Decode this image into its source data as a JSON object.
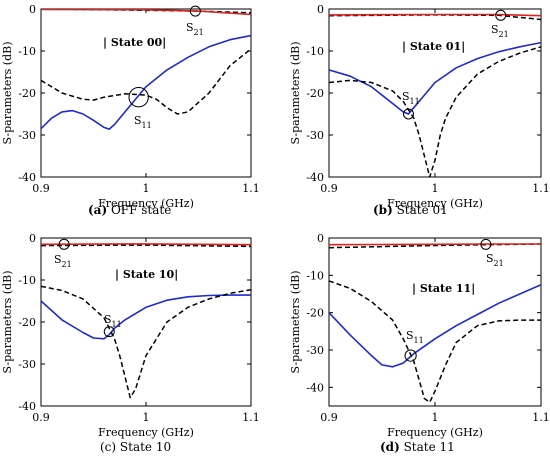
{
  "chart_data": [
    {
      "type": "line",
      "caption_letter": "(a)",
      "caption_text": "OFF state",
      "caption_letter_bold": true,
      "state_label": "| State 00|",
      "xlabel": "Frequency (GHz)",
      "ylabel": "S-parameters (dB)",
      "xlim": [
        0.9,
        1.1
      ],
      "ylim": [
        -40,
        0
      ],
      "xticks": [
        "0.9",
        "1",
        "1.1"
      ],
      "yticks": [
        "0",
        "-10",
        "-20",
        "-30",
        "-40"
      ],
      "annotations": [
        {
          "label": "S",
          "sub": "21",
          "x": 1.047,
          "y": -0.5,
          "r": 0.8
        },
        {
          "label": "S",
          "sub": "11",
          "x": 0.993,
          "y": -21.0,
          "r": 2.3
        }
      ],
      "series": [
        {
          "role": "s21_meas",
          "color": "#000000",
          "dash": true,
          "x": [
            0.9,
            1.0,
            1.05,
            1.1
          ],
          "y": [
            0.0,
            -0.3,
            -0.5,
            -0.9
          ]
        },
        {
          "role": "s21_sim",
          "color": "#e0201b",
          "dash": false,
          "x": [
            0.9,
            1.0,
            1.05,
            1.1
          ],
          "y": [
            -0.1,
            -0.2,
            -0.5,
            -1.3
          ]
        },
        {
          "role": "s11_sim",
          "color": "#1f2ad0",
          "dash": false,
          "x": [
            0.9,
            0.91,
            0.92,
            0.93,
            0.94,
            0.95,
            0.96,
            0.965,
            0.97,
            0.98,
            0.99,
            1.0,
            1.02,
            1.04,
            1.06,
            1.08,
            1.1
          ],
          "y": [
            -28.5,
            -26.0,
            -24.5,
            -24.2,
            -25.0,
            -26.5,
            -28.2,
            -28.6,
            -27.5,
            -24.5,
            -21.5,
            -18.5,
            -14.5,
            -11.5,
            -9.0,
            -7.3,
            -6.3
          ]
        },
        {
          "role": "s11_meas",
          "color": "#000000",
          "dash": true,
          "x": [
            0.9,
            0.92,
            0.94,
            0.95,
            0.96,
            0.98,
            1.0,
            1.01,
            1.02,
            1.03,
            1.04,
            1.06,
            1.08,
            1.1
          ],
          "y": [
            -17.0,
            -20.0,
            -21.5,
            -21.7,
            -21.0,
            -20.2,
            -20.5,
            -21.5,
            -23.5,
            -25.0,
            -24.5,
            -20.0,
            -13.5,
            -9.5
          ]
        }
      ]
    },
    {
      "type": "line",
      "caption_letter": "(b)",
      "caption_text": "State 01",
      "caption_letter_bold": true,
      "state_label": "| State 01|",
      "xlabel": "Frequency (GHz)",
      "ylabel": "S-parameters (dB)",
      "xlim": [
        0.9,
        1.1
      ],
      "ylim": [
        -40,
        0
      ],
      "xticks": [
        "0.9",
        "1",
        "1.1"
      ],
      "yticks": [
        "0",
        "-10",
        "-20",
        "-30",
        "-40"
      ],
      "annotations": [
        {
          "label": "S",
          "sub": "21",
          "x": 1.062,
          "y": -1.5,
          "r": 0.8
        },
        {
          "label": "S",
          "sub": "11",
          "x": 0.975,
          "y": -25.0,
          "r": 0.8
        }
      ],
      "series": [
        {
          "role": "s21_meas",
          "color": "#000000",
          "dash": true,
          "x": [
            0.9,
            1.0,
            1.06,
            1.1
          ],
          "y": [
            -1.6,
            -1.4,
            -1.5,
            -2.5
          ]
        },
        {
          "role": "s21_sim",
          "color": "#e0201b",
          "dash": false,
          "x": [
            0.9,
            1.0,
            1.06,
            1.1
          ],
          "y": [
            -1.4,
            -1.3,
            -1.3,
            -1.6
          ]
        },
        {
          "role": "s11_sim",
          "color": "#1f2ad0",
          "dash": false,
          "x": [
            0.9,
            0.92,
            0.94,
            0.96,
            0.97,
            0.975,
            0.98,
            0.99,
            1.0,
            1.02,
            1.04,
            1.06,
            1.08,
            1.1
          ],
          "y": [
            -14.5,
            -16.0,
            -18.5,
            -22.5,
            -24.5,
            -25.0,
            -23.5,
            -20.5,
            -17.5,
            -14.0,
            -11.8,
            -10.2,
            -9.0,
            -8.0
          ]
        },
        {
          "role": "s11_meas",
          "color": "#000000",
          "dash": true,
          "x": [
            0.9,
            0.92,
            0.94,
            0.96,
            0.97,
            0.98,
            0.985,
            0.99,
            0.995,
            1.0,
            1.005,
            1.01,
            1.02,
            1.04,
            1.06,
            1.08,
            1.1
          ],
          "y": [
            -17.5,
            -17.0,
            -17.5,
            -19.5,
            -22.0,
            -26.0,
            -30.0,
            -35.0,
            -40.0,
            -36.0,
            -30.0,
            -26.0,
            -21.0,
            -15.5,
            -12.5,
            -10.5,
            -9.0
          ]
        }
      ]
    },
    {
      "type": "line",
      "caption_letter": "(c)",
      "caption_text": "State 10",
      "caption_letter_bold": false,
      "state_label": "| State 10|",
      "xlabel": "Frequency (GHz)",
      "ylabel": "S-parameters (dB)",
      "xlim": [
        0.9,
        1.1
      ],
      "ylim": [
        -40,
        0
      ],
      "xticks": [
        "0.9",
        "1",
        "1.1"
      ],
      "yticks": [
        "0",
        "-10",
        "-20",
        "-30",
        "-40"
      ],
      "annotations": [
        {
          "label": "S",
          "sub": "21",
          "x": 0.922,
          "y": -1.5,
          "r": 0.8
        },
        {
          "label": "S",
          "sub": "11",
          "x": 0.965,
          "y": -22.3,
          "r": 0.8
        }
      ],
      "series": [
        {
          "role": "s21_meas",
          "color": "#000000",
          "dash": true,
          "x": [
            0.9,
            1.0,
            1.1
          ],
          "y": [
            -1.8,
            -1.7,
            -2.0
          ]
        },
        {
          "role": "s21_sim",
          "color": "#e0201b",
          "dash": false,
          "x": [
            0.9,
            1.0,
            1.1
          ],
          "y": [
            -1.5,
            -1.4,
            -1.6
          ]
        },
        {
          "role": "s11_sim",
          "color": "#1f2ad0",
          "dash": false,
          "x": [
            0.9,
            0.92,
            0.94,
            0.95,
            0.96,
            0.965,
            0.97,
            0.98,
            1.0,
            1.02,
            1.04,
            1.06,
            1.08,
            1.1
          ],
          "y": [
            -15.0,
            -19.5,
            -22.5,
            -23.8,
            -24.0,
            -23.0,
            -21.5,
            -19.5,
            -16.5,
            -14.8,
            -14.0,
            -13.7,
            -13.6,
            -13.6
          ]
        },
        {
          "role": "s11_meas",
          "color": "#000000",
          "dash": true,
          "x": [
            0.9,
            0.92,
            0.94,
            0.96,
            0.97,
            0.975,
            0.98,
            0.985,
            0.99,
            1.0,
            1.02,
            1.04,
            1.06,
            1.08,
            1.1
          ],
          "y": [
            -11.5,
            -12.5,
            -14.5,
            -19.0,
            -24.0,
            -28.0,
            -33.0,
            -38.0,
            -36.0,
            -28.0,
            -20.0,
            -16.5,
            -14.5,
            -13.2,
            -12.3
          ]
        }
      ]
    },
    {
      "type": "line",
      "caption_letter": "(d)",
      "caption_text": "State 11",
      "caption_letter_bold": true,
      "state_label": "| State 11|",
      "xlabel": "Frequency (GHz)",
      "ylabel": "S-parameters (dB)",
      "xlim": [
        0.9,
        1.1
      ],
      "ylim": [
        -45,
        0
      ],
      "xticks": [
        "0.9",
        "1",
        "1.1"
      ],
      "yticks": [
        "0",
        "-10",
        "-20",
        "-30",
        "-40"
      ],
      "annotations": [
        {
          "label": "S",
          "sub": "21",
          "x": 1.048,
          "y": -1.7,
          "r": 0.8
        },
        {
          "label": "S",
          "sub": "11",
          "x": 0.977,
          "y": -31.5,
          "r": 1.5
        }
      ],
      "series": [
        {
          "role": "s21_meas",
          "color": "#000000",
          "dash": true,
          "x": [
            0.9,
            1.0,
            1.05,
            1.1
          ],
          "y": [
            -2.6,
            -2.0,
            -1.8,
            -1.6
          ]
        },
        {
          "role": "s21_sim",
          "color": "#e0201b",
          "dash": false,
          "x": [
            0.9,
            1.0,
            1.05,
            1.1
          ],
          "y": [
            -1.8,
            -1.7,
            -1.6,
            -1.6
          ]
        },
        {
          "role": "s11_sim",
          "color": "#1f2ad0",
          "dash": false,
          "x": [
            0.9,
            0.92,
            0.94,
            0.95,
            0.96,
            0.97,
            0.98,
            1.0,
            1.02,
            1.04,
            1.06,
            1.08,
            1.1
          ],
          "y": [
            -20.0,
            -26.0,
            -31.5,
            -34.0,
            -34.5,
            -33.5,
            -31.0,
            -27.0,
            -23.5,
            -20.5,
            -17.5,
            -15.0,
            -12.5
          ]
        },
        {
          "role": "s11_meas",
          "color": "#000000",
          "dash": true,
          "x": [
            0.9,
            0.92,
            0.94,
            0.96,
            0.97,
            0.98,
            0.985,
            0.99,
            0.995,
            1.0,
            1.01,
            1.02,
            1.04,
            1.06,
            1.08,
            1.1
          ],
          "y": [
            -11.5,
            -13.5,
            -17.0,
            -22.0,
            -27.0,
            -33.0,
            -38.0,
            -43.0,
            -44.0,
            -41.0,
            -34.0,
            -28.0,
            -23.5,
            -22.2,
            -22.0,
            -22.0
          ]
        }
      ]
    }
  ]
}
